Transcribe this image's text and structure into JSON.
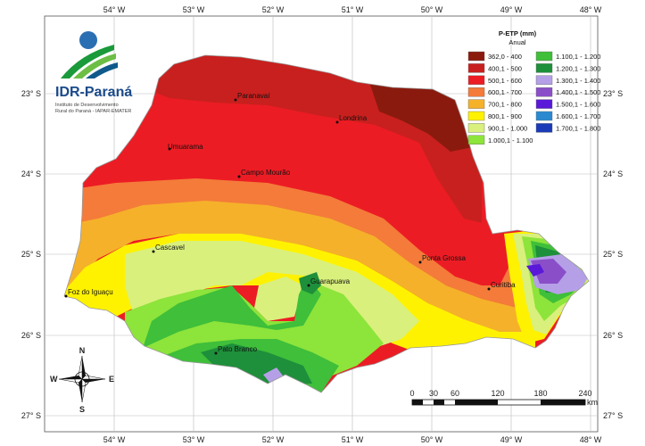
{
  "logo": {
    "name": "IDR-Paraná",
    "subtitle_line1": "Instituto de Desenvolvimento",
    "subtitle_line2": "Rural do Paraná - IAPAR-EMATER"
  },
  "legend": {
    "title": "P-ETP (mm)",
    "subtitle": "Anual",
    "classes": [
      {
        "label": "362,0 - 400",
        "color": "#8b1a0e"
      },
      {
        "label": "400,1 - 500",
        "color": "#c8201e"
      },
      {
        "label": "500,1 - 600",
        "color": "#ec1c24"
      },
      {
        "label": "600,1 - 700",
        "color": "#f47b3a"
      },
      {
        "label": "700,1 - 800",
        "color": "#f5b12a"
      },
      {
        "label": "800,1 - 900",
        "color": "#fff200"
      },
      {
        "label": "900,1 - 1.000",
        "color": "#d9f07d"
      },
      {
        "label": "1.000,1 - 1.100",
        "color": "#8de43a"
      },
      {
        "label": "1.100,1 - 1.200",
        "color": "#3fbf3a"
      },
      {
        "label": "1.200,1 - 1.300",
        "color": "#1e8f3a"
      },
      {
        "label": "1.300,1 - 1.400",
        "color": "#b5a0e8"
      },
      {
        "label": "1.400,1 - 1.500",
        "color": "#8a4fc8"
      },
      {
        "label": "1.500,1 - 1.600",
        "color": "#5a18d8"
      },
      {
        "label": "1.600,1 - 1.700",
        "color": "#2a8ad0"
      },
      {
        "label": "1.700,1 - 1.800",
        "color": "#1a3ab8"
      }
    ]
  },
  "axes": {
    "longitudes": [
      "54° W",
      "53° W",
      "52° W",
      "51° W",
      "50° W",
      "49° W",
      "48° W"
    ],
    "latitudes": [
      "23° S",
      "24° S",
      "25° S",
      "26° S",
      "27° S"
    ]
  },
  "cities": [
    "Paranavaí",
    "Londrina",
    "Umuarama",
    "Campo Mourão",
    "Cascavel",
    "Ponta Grossa",
    "Curitiba",
    "Foz do Iguaçu",
    "Guarapuava",
    "Pato Branco"
  ],
  "scale_bar": {
    "ticks": [
      "0",
      "30",
      "60",
      "120",
      "180",
      "240"
    ],
    "unit": "km"
  },
  "compass": {
    "n": "N",
    "s": "S",
    "e": "E",
    "w": "W"
  }
}
